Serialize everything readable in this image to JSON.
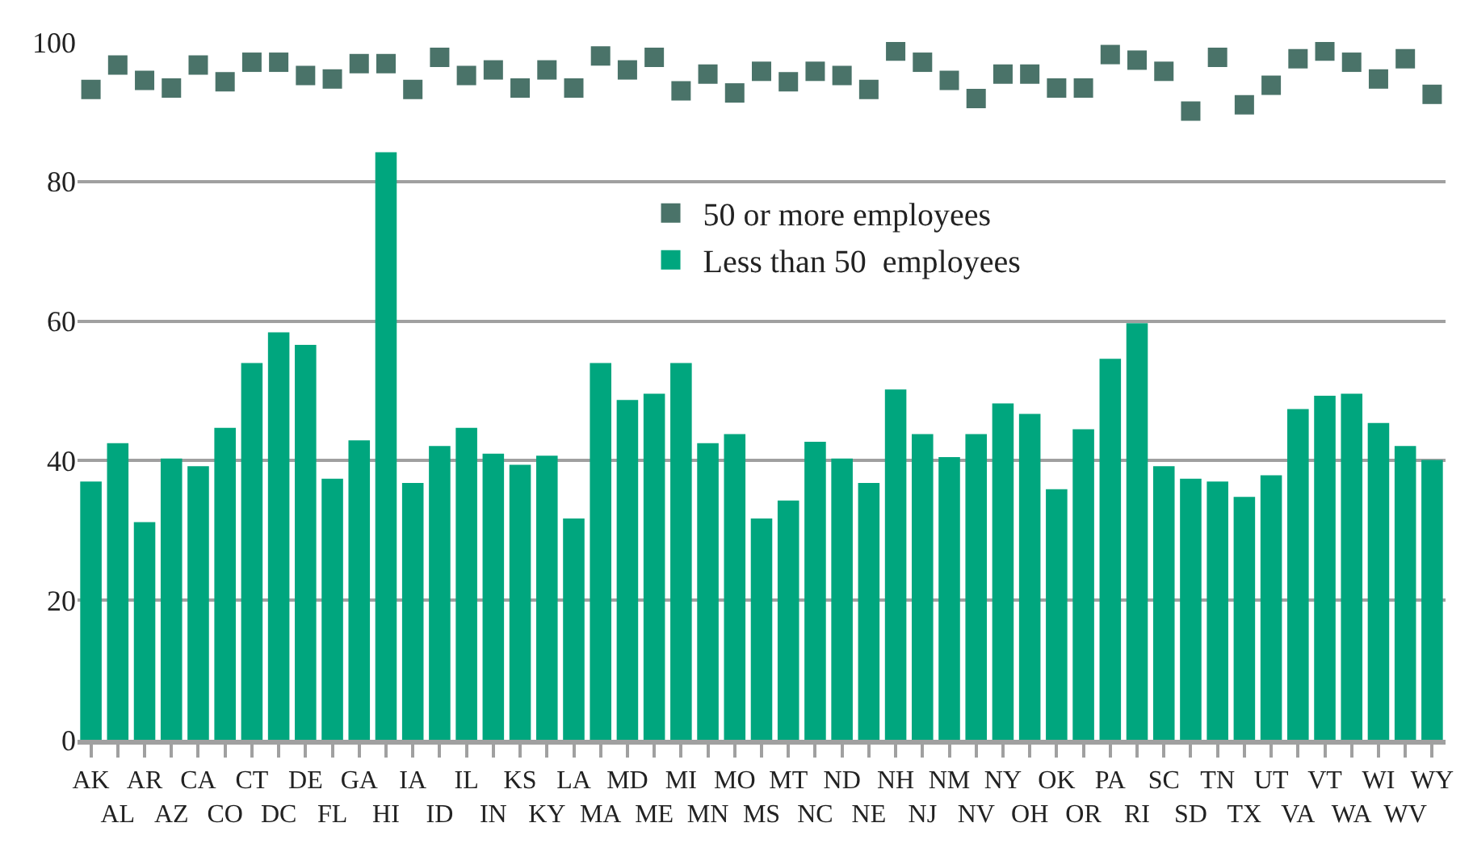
{
  "chart_data": {
    "type": "bar",
    "categories": [
      "AK",
      "AL",
      "AR",
      "AZ",
      "CA",
      "CO",
      "CT",
      "DC",
      "DE",
      "FL",
      "GA",
      "HI",
      "IA",
      "ID",
      "IL",
      "IN",
      "KS",
      "KY",
      "LA",
      "MA",
      "MD",
      "ME",
      "MI",
      "MN",
      "MO",
      "MS",
      "MT",
      "NC",
      "ND",
      "NE",
      "NH",
      "NJ",
      "NM",
      "NV",
      "NY",
      "OH",
      "OK",
      "OR",
      "PA",
      "RI",
      "SC",
      "SD",
      "TN",
      "TX",
      "UT",
      "VA",
      "VT",
      "WA",
      "WI",
      "WV",
      "WY"
    ],
    "series": [
      {
        "name": "50 or more employees",
        "type": "scatter",
        "marker": "square",
        "color": "#4a7369",
        "values": [
          93.2,
          96.7,
          94.5,
          93.4,
          96.7,
          94.3,
          97.1,
          97.1,
          95.2,
          94.7,
          96.9,
          96.9,
          93.2,
          97.8,
          95.2,
          96.0,
          93.4,
          96.0,
          93.4,
          98.0,
          96.0,
          97.8,
          93.0,
          95.4,
          92.7,
          95.8,
          94.3,
          95.8,
          95.2,
          93.2,
          98.7,
          97.1,
          94.5,
          91.9,
          95.4,
          95.4,
          93.4,
          93.4,
          98.2,
          97.4,
          95.8,
          90.1,
          97.8,
          91.0,
          93.8,
          97.6,
          98.7,
          97.1,
          94.7,
          97.6,
          92.5
        ]
      },
      {
        "name": "Less than 50  employees",
        "color": "#00a67e",
        "values": [
          37.0,
          42.5,
          31.2,
          40.3,
          39.2,
          44.7,
          54.0,
          58.4,
          56.6,
          37.4,
          42.9,
          84.2,
          36.8,
          42.1,
          44.7,
          41.0,
          39.4,
          40.7,
          31.7,
          54.0,
          48.7,
          49.6,
          54.0,
          42.5,
          43.8,
          31.7,
          34.3,
          42.7,
          40.3,
          36.8,
          50.2,
          43.8,
          40.5,
          43.8,
          48.2,
          46.7,
          35.9,
          44.5,
          54.6,
          59.7,
          39.2,
          37.4,
          37.0,
          34.8,
          37.9,
          47.4,
          49.3,
          49.6,
          45.4,
          42.1,
          40.1
        ]
      }
    ],
    "ylim": [
      0,
      100
    ],
    "yticks": [
      0,
      20,
      40,
      60,
      80,
      100
    ],
    "grid": "y",
    "legend": "top"
  }
}
